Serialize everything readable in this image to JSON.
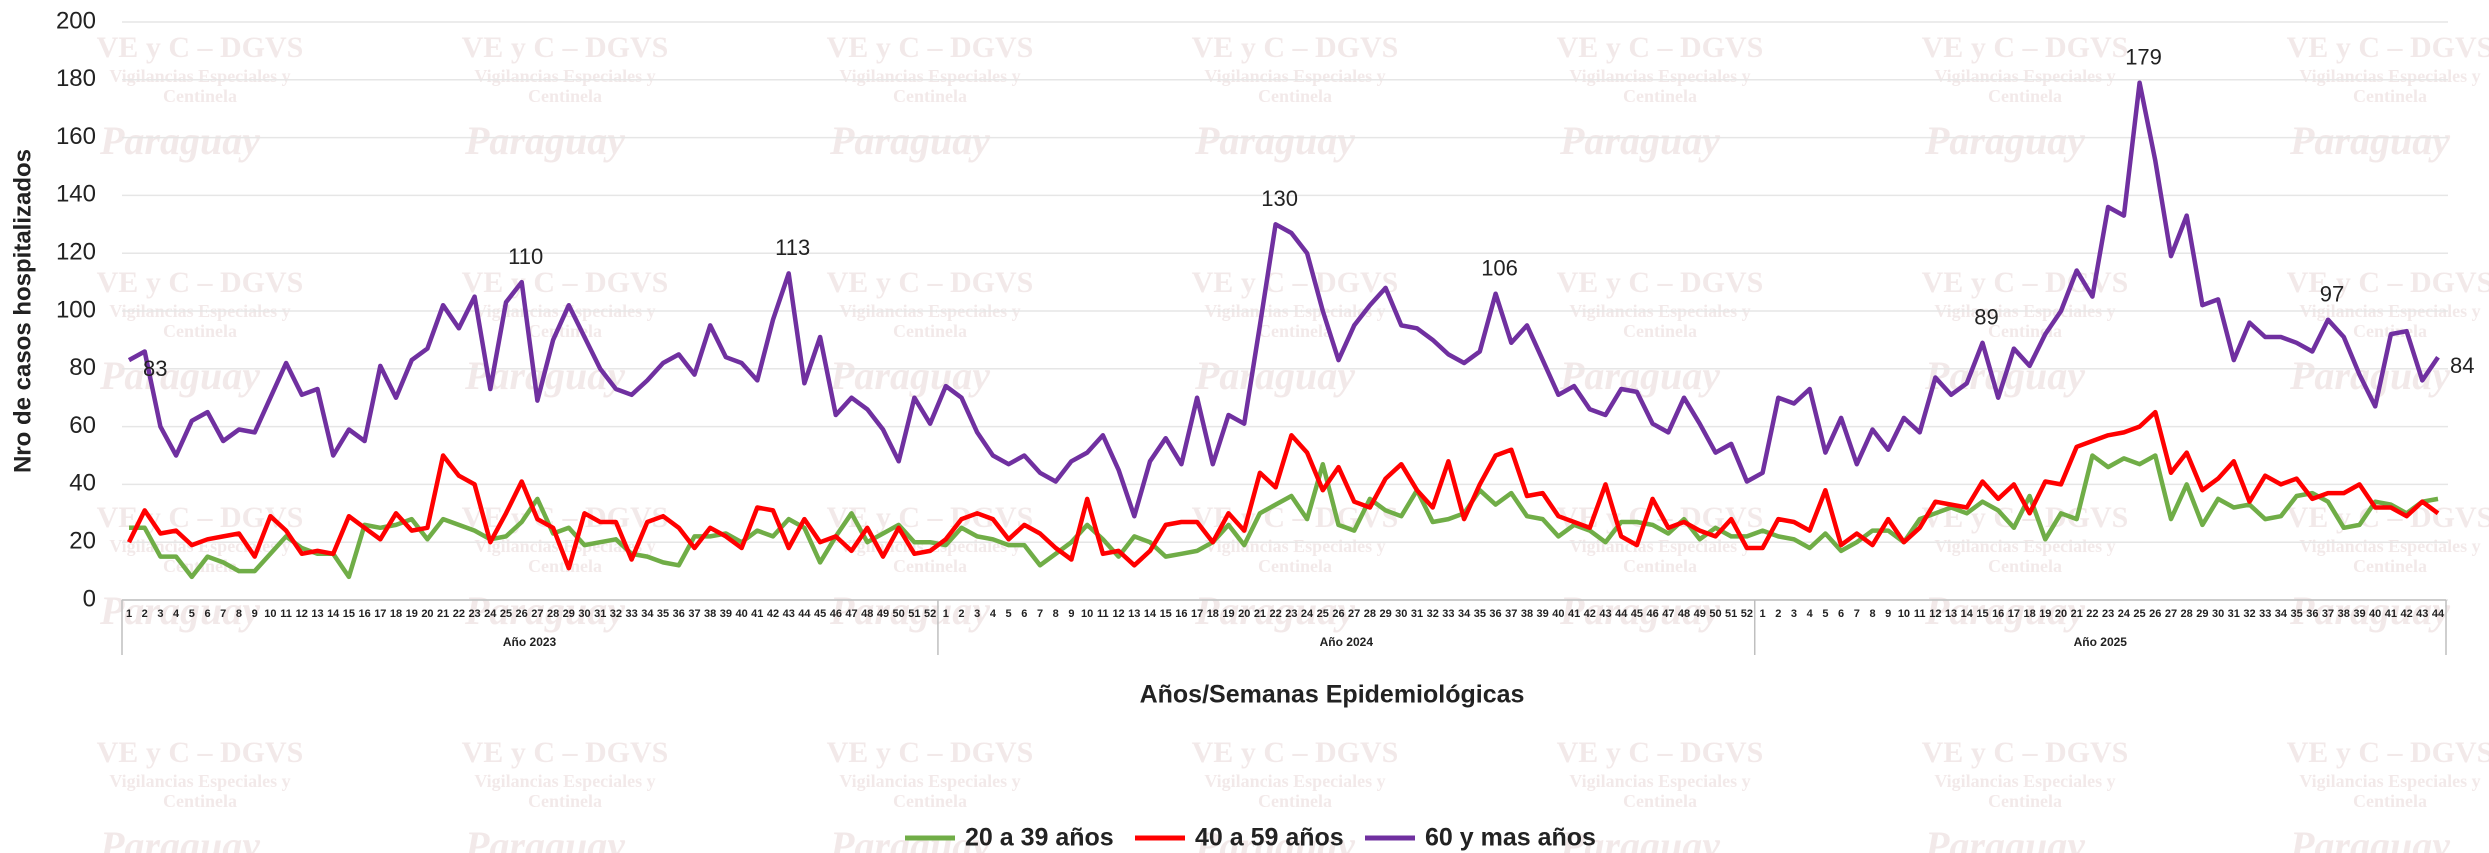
{
  "chart_data": {
    "type": "line",
    "y_label": "Nro de casos hospitalizados",
    "x_label": "Años/Semanas Epidemiológicas",
    "groups": [
      "Año 2023",
      "Año 2024",
      "Año 2025"
    ],
    "watermark": [
      "VE y C – DGVS",
      "Vigilancias Especiales y",
      "Centinela",
      "Paraguay"
    ],
    "categories": [
      "1",
      "2",
      "3",
      "4",
      "5",
      "6",
      "7",
      "8",
      "9",
      "10",
      "11",
      "12",
      "13",
      "14",
      "15",
      "16",
      "17",
      "18",
      "19",
      "20",
      "21",
      "22",
      "23",
      "24",
      "25",
      "26",
      "27",
      "28",
      "29",
      "30",
      "31",
      "32",
      "33",
      "34",
      "35",
      "36",
      "37",
      "38",
      "39",
      "40",
      "41",
      "42",
      "43",
      "44",
      "45",
      "46",
      "47",
      "48",
      "49",
      "50",
      "51",
      "52",
      "1",
      "2",
      "3",
      "4",
      "5",
      "6",
      "7",
      "8",
      "9",
      "10",
      "11",
      "12",
      "13",
      "14",
      "15",
      "16",
      "17",
      "18",
      "19",
      "20",
      "21",
      "22",
      "23",
      "24",
      "25",
      "26",
      "27",
      "28",
      "29",
      "30",
      "31",
      "32",
      "33",
      "34",
      "35",
      "36",
      "37",
      "38",
      "39",
      "40",
      "41",
      "42",
      "43",
      "44",
      "45",
      "46",
      "47",
      "48",
      "49",
      "50",
      "51",
      "52",
      "1",
      "2",
      "3",
      "4",
      "5",
      "6",
      "7",
      "8",
      "9",
      "10",
      "11",
      "12",
      "13",
      "14",
      "15",
      "16",
      "17",
      "18",
      "19",
      "20",
      "21",
      "22",
      "23",
      "24",
      "25",
      "26",
      "27",
      "28",
      "29",
      "30",
      "31",
      "32",
      "33",
      "34",
      "35",
      "36",
      "37",
      "38",
      "39",
      "40",
      "41",
      "42",
      "43",
      "44"
    ],
    "ylim": [
      0,
      200
    ],
    "yticks": [
      0,
      20,
      40,
      60,
      80,
      100,
      120,
      140,
      160,
      180,
      200
    ],
    "grid": true,
    "legend": "bottom",
    "series": [
      {
        "name": "20 a 39 años",
        "color": "#70ad47",
        "values": [
          25,
          25,
          15,
          15,
          8,
          15,
          13,
          10,
          10,
          16,
          22,
          18,
          16,
          16,
          8,
          26,
          25,
          26,
          28,
          21,
          28,
          26,
          24,
          21,
          22,
          27,
          35,
          23,
          25,
          19,
          20,
          21,
          16,
          15,
          13,
          12,
          22,
          22,
          23,
          20,
          24,
          22,
          28,
          25,
          13,
          22,
          30,
          20,
          23,
          26,
          20,
          20,
          19,
          25,
          22,
          21,
          19,
          19,
          12,
          16,
          20,
          26,
          21,
          15,
          22,
          20,
          15,
          16,
          17,
          20,
          26,
          19,
          30,
          33,
          36,
          28,
          47,
          26,
          24,
          35,
          31,
          29,
          38,
          27,
          28,
          30,
          38,
          33,
          37,
          29,
          28,
          22,
          26,
          24,
          20,
          27,
          27,
          26,
          23,
          28,
          21,
          25,
          22,
          22,
          24,
          22,
          21,
          18,
          23,
          17,
          20,
          24,
          24,
          20,
          28,
          30,
          32,
          30,
          34,
          31,
          25,
          36,
          21,
          30,
          28,
          50,
          46,
          49,
          47,
          50,
          28,
          40,
          26,
          35,
          32,
          33,
          28,
          29,
          36,
          37,
          34,
          25,
          26,
          34,
          33,
          30,
          34,
          35
        ]
      },
      {
        "name": "40 a 59 años",
        "color": "#ff0000",
        "values": [
          20,
          31,
          23,
          24,
          19,
          21,
          22,
          23,
          15,
          29,
          24,
          16,
          17,
          16,
          29,
          25,
          21,
          30,
          24,
          25,
          50,
          43,
          40,
          20,
          30,
          41,
          28,
          25,
          11,
          30,
          27,
          27,
          14,
          27,
          29,
          25,
          18,
          25,
          22,
          18,
          32,
          31,
          18,
          28,
          20,
          22,
          17,
          25,
          15,
          25,
          16,
          17,
          21,
          28,
          30,
          28,
          21,
          26,
          23,
          18,
          14,
          35,
          16,
          17,
          12,
          17,
          26,
          27,
          27,
          20,
          30,
          24,
          44,
          39,
          57,
          51,
          38,
          46,
          34,
          32,
          42,
          47,
          38,
          32,
          48,
          28,
          40,
          50,
          52,
          36,
          37,
          29,
          27,
          25,
          40,
          22,
          19,
          35,
          25,
          27,
          24,
          22,
          28,
          18,
          18,
          28,
          27,
          24,
          38,
          19,
          23,
          19,
          28,
          20,
          25,
          34,
          33,
          32,
          41,
          35,
          40,
          30,
          41,
          40,
          53,
          55,
          57,
          58,
          60,
          65,
          44,
          51,
          38,
          42,
          48,
          34,
          43,
          40,
          42,
          35,
          37,
          37,
          40,
          32,
          32,
          29,
          34,
          30
        ]
      },
      {
        "name": "60 y mas años",
        "color": "#7030a0",
        "values": [
          83,
          86,
          60,
          50,
          62,
          65,
          55,
          59,
          58,
          70,
          82,
          71,
          73,
          50,
          59,
          55,
          81,
          70,
          83,
          87,
          102,
          94,
          105,
          73,
          103,
          110,
          69,
          90,
          102,
          91,
          80,
          73,
          71,
          76,
          82,
          85,
          78,
          95,
          84,
          82,
          76,
          97,
          113,
          75,
          91,
          64,
          70,
          66,
          59,
          48,
          70,
          61,
          74,
          70,
          58,
          50,
          47,
          50,
          44,
          41,
          48,
          51,
          57,
          45,
          29,
          48,
          56,
          47,
          70,
          47,
          64,
          61,
          95,
          130,
          127,
          120,
          100,
          83,
          95,
          102,
          108,
          95,
          94,
          90,
          85,
          82,
          86,
          106,
          89,
          95,
          83,
          71,
          74,
          66,
          64,
          73,
          72,
          61,
          58,
          70,
          61,
          51,
          54,
          41,
          44,
          70,
          68,
          73,
          51,
          63,
          47,
          59,
          52,
          63,
          58,
          77,
          71,
          75,
          89,
          70,
          87,
          81,
          92,
          100,
          114,
          105,
          136,
          133,
          179,
          152,
          119,
          133,
          102,
          104,
          83,
          96,
          91,
          91,
          89,
          86,
          97,
          91,
          78,
          67,
          92,
          93,
          76,
          84
        ],
        "value_labels": [
          "83",
          null,
          null,
          null,
          null,
          null,
          null,
          null,
          null,
          null,
          null,
          null,
          null,
          null,
          null,
          null,
          null,
          null,
          null,
          null,
          null,
          null,
          null,
          null,
          null,
          "110",
          null,
          null,
          null,
          null,
          null,
          null,
          null,
          null,
          null,
          null,
          null,
          null,
          null,
          null,
          null,
          null,
          "113",
          null,
          null,
          null,
          null,
          null,
          null,
          null,
          null,
          null,
          null,
          null,
          null,
          null,
          null,
          null,
          null,
          null,
          null,
          null,
          null,
          null,
          null,
          null,
          null,
          null,
          null,
          null,
          null,
          null,
          null,
          "130",
          null,
          null,
          null,
          null,
          null,
          null,
          null,
          null,
          null,
          null,
          null,
          null,
          null,
          "106",
          null,
          null,
          null,
          null,
          null,
          null,
          null,
          null,
          null,
          null,
          null,
          null,
          null,
          null,
          null,
          null,
          null,
          null,
          null,
          null,
          null,
          null,
          null,
          null,
          null,
          null,
          null,
          null,
          null,
          null,
          "89",
          null,
          null,
          null,
          null,
          null,
          null,
          null,
          null,
          null,
          "179",
          null,
          null,
          null,
          null,
          null,
          null,
          null,
          null,
          null,
          null,
          null,
          "97",
          null,
          null,
          null,
          null,
          null,
          null,
          "84"
        ]
      }
    ]
  }
}
